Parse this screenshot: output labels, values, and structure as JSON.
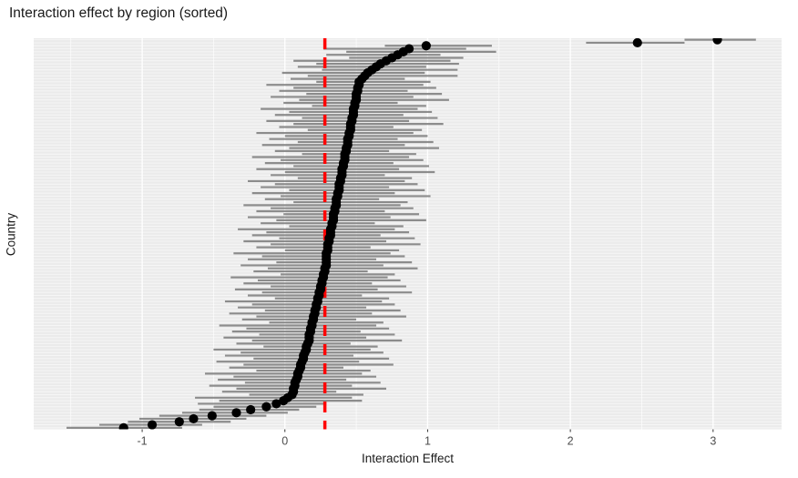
{
  "figure": {
    "title": "Interaction effect by region (sorted)",
    "x_axis": {
      "label": "Interaction Effect",
      "tick_labels": [
        "-1",
        "0",
        "1",
        "2",
        "3"
      ],
      "tick_values": [
        -1,
        0,
        1,
        2,
        3
      ],
      "minor_gridline_values": [
        -1.5,
        -0.5,
        0.5,
        1.5,
        2.5
      ]
    },
    "y_axis": {
      "label": "Country",
      "tick_labels_visible": false
    }
  },
  "style": {
    "panel_background": "#EBEBEB",
    "gridline_color": "#FFFFFF",
    "error_bar_color": "#7F7F7F",
    "point_color": "#000000",
    "reference_line_color": "#FF0000",
    "title_color": "#1A1A1A",
    "axis_title_color": "#1A1A1A",
    "tick_label_color": "#4D4D4D",
    "tick_mark_color": "#333333"
  },
  "chart_data": {
    "type": "scatter",
    "subtype": "forest-plot-dot-with-ci-bars",
    "title": "Interaction effect by region (sorted)",
    "xlabel": "Interaction Effect",
    "ylabel": "Country",
    "xlim": [
      -1.76,
      3.48
    ],
    "grid": true,
    "legend": false,
    "n_countries": 130,
    "row_order": "sorted by estimate, largest at top",
    "y_category_labels_shown": false,
    "reference_line": {
      "x": 0.28,
      "orientation": "vertical",
      "style": "dashed",
      "color": "#FF0000"
    },
    "rows_format": [
      "ci_lower",
      "estimate",
      "ci_upper"
    ],
    "rows": [
      [
        2.8,
        3.03,
        3.3
      ],
      [
        2.11,
        2.47,
        2.8
      ],
      [
        0.7,
        0.99,
        1.45
      ],
      [
        0.27,
        0.87,
        1.27
      ],
      [
        0.43,
        0.83,
        1.48
      ],
      [
        0.29,
        0.79,
        1.09
      ],
      [
        0.45,
        0.75,
        1.25
      ],
      [
        0.06,
        0.71,
        1.16
      ],
      [
        0.22,
        0.67,
        1.22
      ],
      [
        0.09,
        0.64,
        0.99
      ],
      [
        0.26,
        0.61,
        1.21
      ],
      [
        -0.02,
        0.58,
        0.98
      ],
      [
        0.16,
        0.56,
        1.21
      ],
      [
        0.04,
        0.54,
        0.84
      ],
      [
        0.22,
        0.52,
        1.02
      ],
      [
        -0.13,
        0.52,
        0.97
      ],
      [
        0.06,
        0.51,
        1.06
      ],
      [
        -0.04,
        0.51,
        0.86
      ],
      [
        0.15,
        0.5,
        1.1
      ],
      [
        -0.1,
        0.5,
        0.9
      ],
      [
        0.1,
        0.5,
        1.15
      ],
      [
        -0.01,
        0.49,
        0.79
      ],
      [
        0.19,
        0.49,
        0.99
      ],
      [
        -0.17,
        0.48,
        0.93
      ],
      [
        0.03,
        0.48,
        1.03
      ],
      [
        -0.07,
        0.48,
        0.83
      ],
      [
        0.12,
        0.47,
        1.07
      ],
      [
        -0.13,
        0.47,
        0.87
      ],
      [
        0.06,
        0.46,
        1.11
      ],
      [
        -0.04,
        0.46,
        0.76
      ],
      [
        0.16,
        0.46,
        0.96
      ],
      [
        -0.2,
        0.45,
        0.9
      ],
      [
        0.0,
        0.45,
        1.0
      ],
      [
        -0.11,
        0.44,
        0.79
      ],
      [
        0.09,
        0.44,
        1.04
      ],
      [
        -0.16,
        0.44,
        0.84
      ],
      [
        0.03,
        0.43,
        1.08
      ],
      [
        -0.07,
        0.43,
        0.73
      ],
      [
        0.12,
        0.42,
        0.92
      ],
      [
        -0.23,
        0.42,
        0.87
      ],
      [
        -0.03,
        0.42,
        0.97
      ],
      [
        -0.14,
        0.41,
        0.76
      ],
      [
        0.06,
        0.41,
        1.01
      ],
      [
        -0.2,
        0.4,
        0.8
      ],
      [
        0.0,
        0.4,
        1.05
      ],
      [
        -0.1,
        0.4,
        0.7
      ],
      [
        0.09,
        0.39,
        0.89
      ],
      [
        -0.26,
        0.39,
        0.84
      ],
      [
        -0.07,
        0.38,
        0.93
      ],
      [
        -0.17,
        0.38,
        0.73
      ],
      [
        0.03,
        0.38,
        0.98
      ],
      [
        -0.23,
        0.37,
        0.77
      ],
      [
        -0.03,
        0.37,
        1.02
      ],
      [
        -0.14,
        0.36,
        0.66
      ],
      [
        0.06,
        0.36,
        0.86
      ],
      [
        -0.29,
        0.36,
        0.81
      ],
      [
        -0.1,
        0.35,
        0.9
      ],
      [
        -0.2,
        0.35,
        0.7
      ],
      [
        -0.01,
        0.34,
        0.94
      ],
      [
        -0.26,
        0.34,
        0.74
      ],
      [
        -0.06,
        0.34,
        0.99
      ],
      [
        -0.17,
        0.33,
        0.63
      ],
      [
        0.03,
        0.33,
        0.83
      ],
      [
        -0.33,
        0.32,
        0.77
      ],
      [
        -0.13,
        0.32,
        0.87
      ],
      [
        -0.23,
        0.32,
        0.67
      ],
      [
        -0.04,
        0.31,
        0.91
      ],
      [
        -0.29,
        0.31,
        0.71
      ],
      [
        -0.1,
        0.3,
        0.95
      ],
      [
        -0.2,
        0.3,
        0.6
      ],
      [
        0.0,
        0.3,
        0.8
      ],
      [
        -0.36,
        0.29,
        0.74
      ],
      [
        -0.16,
        0.29,
        0.84
      ],
      [
        -0.26,
        0.29,
        0.64
      ],
      [
        -0.06,
        0.29,
        0.89
      ],
      [
        -0.31,
        0.29,
        0.69
      ],
      [
        -0.12,
        0.28,
        0.93
      ],
      [
        -0.22,
        0.28,
        0.58
      ],
      [
        -0.03,
        0.27,
        0.77
      ],
      [
        -0.38,
        0.27,
        0.72
      ],
      [
        -0.19,
        0.26,
        0.81
      ],
      [
        -0.29,
        0.26,
        0.61
      ],
      [
        -0.1,
        0.25,
        0.85
      ],
      [
        -0.35,
        0.25,
        0.65
      ],
      [
        -0.16,
        0.24,
        0.89
      ],
      [
        -0.26,
        0.24,
        0.54
      ],
      [
        -0.07,
        0.23,
        0.73
      ],
      [
        -0.42,
        0.23,
        0.68
      ],
      [
        -0.23,
        0.22,
        0.77
      ],
      [
        -0.33,
        0.22,
        0.57
      ],
      [
        -0.14,
        0.21,
        0.81
      ],
      [
        -0.39,
        0.21,
        0.61
      ],
      [
        -0.2,
        0.2,
        0.85
      ],
      [
        -0.3,
        0.2,
        0.5
      ],
      [
        -0.11,
        0.19,
        0.69
      ],
      [
        -0.46,
        0.19,
        0.64
      ],
      [
        -0.27,
        0.18,
        0.73
      ],
      [
        -0.37,
        0.18,
        0.53
      ],
      [
        -0.18,
        0.17,
        0.77
      ],
      [
        -0.43,
        0.17,
        0.57
      ],
      [
        -0.23,
        0.17,
        0.82
      ],
      [
        -0.34,
        0.16,
        0.46
      ],
      [
        -0.15,
        0.15,
        0.65
      ],
      [
        -0.5,
        0.15,
        0.6
      ],
      [
        -0.31,
        0.14,
        0.69
      ],
      [
        -0.42,
        0.13,
        0.48
      ],
      [
        -0.22,
        0.13,
        0.73
      ],
      [
        -0.48,
        0.12,
        0.52
      ],
      [
        -0.29,
        0.11,
        0.76
      ],
      [
        -0.39,
        0.11,
        0.41
      ],
      [
        -0.2,
        0.1,
        0.6
      ],
      [
        -0.56,
        0.09,
        0.54
      ],
      [
        -0.36,
        0.09,
        0.64
      ],
      [
        -0.47,
        0.08,
        0.43
      ],
      [
        -0.28,
        0.07,
        0.67
      ],
      [
        -0.53,
        0.07,
        0.47
      ],
      [
        -0.34,
        0.06,
        0.71
      ],
      [
        -0.44,
        0.06,
        0.36
      ],
      [
        -0.25,
        0.05,
        0.55
      ],
      [
        -0.63,
        0.02,
        0.47
      ],
      [
        -0.46,
        -0.01,
        0.54
      ],
      [
        -0.61,
        -0.06,
        0.29
      ],
      [
        -0.5,
        -0.13,
        0.22
      ],
      [
        -0.6,
        -0.24,
        0.1
      ],
      [
        -0.72,
        -0.34,
        0.02
      ],
      [
        -0.88,
        -0.51,
        -0.13
      ],
      [
        -1.02,
        -0.64,
        -0.27
      ],
      [
        -1.1,
        -0.74,
        -0.38
      ],
      [
        -1.3,
        -0.93,
        -0.58
      ],
      [
        -1.53,
        -1.13,
        -0.72
      ]
    ]
  }
}
